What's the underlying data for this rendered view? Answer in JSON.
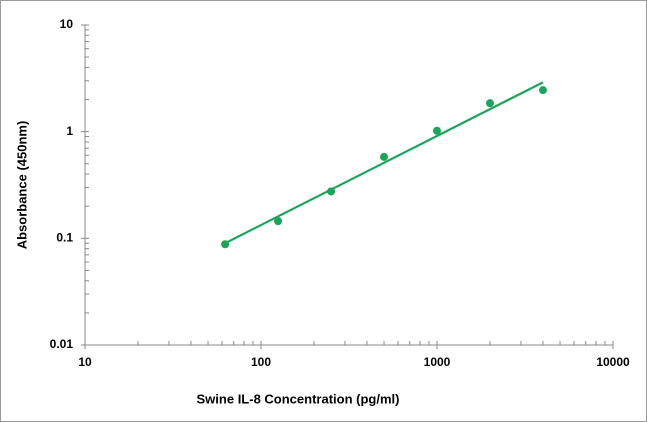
{
  "chart_data": {
    "type": "scatter",
    "x_label": "Swine IL-8 Concentration (pg/ml)",
    "y_label": "Absorbance (450nm)",
    "log_x": true,
    "log_y": true,
    "grid": false,
    "xlim": [
      10,
      10000
    ],
    "xticks": [
      10,
      100,
      1000,
      10000
    ],
    "xminorticks": [
      20,
      30,
      40,
      50,
      60,
      70,
      80,
      90,
      200,
      300,
      400,
      500,
      600,
      700,
      800,
      900,
      2000,
      3000,
      4000,
      5000,
      6000,
      7000,
      8000,
      9000
    ],
    "ylim": [
      0.01,
      10
    ],
    "yticks": [
      0.01,
      0.1,
      1,
      10
    ],
    "yminorticks": [
      0.02,
      0.03,
      0.04,
      0.05,
      0.06,
      0.07,
      0.08,
      0.09,
      0.2,
      0.3,
      0.4,
      0.5,
      0.6,
      0.7,
      0.8,
      0.9,
      2,
      3,
      4,
      5,
      6,
      7,
      8,
      9
    ],
    "series": [
      {
        "color": "#1aa55a",
        "marker": "circle",
        "x": [
          62.5,
          125,
          250,
          500,
          1000,
          2000,
          4000
        ],
        "values": [
          0.088,
          0.145,
          0.275,
          0.58,
          1.02,
          1.85,
          2.45
        ]
      },
      {
        "color": "#1aa55a",
        "line": true,
        "x": [
          62.5,
          4000
        ],
        "values": [
          0.09,
          2.9
        ]
      }
    ]
  }
}
